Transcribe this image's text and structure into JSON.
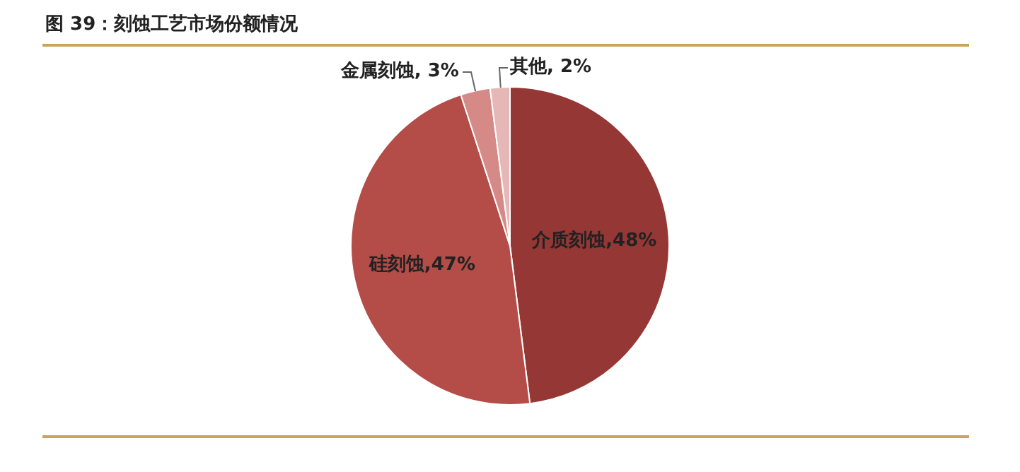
{
  "chart_data": {
    "type": "pie",
    "title": "图 39：刻蚀工艺市场份额情况",
    "categories": [
      "介质刻蚀",
      "硅刻蚀",
      "金属刻蚀",
      "其他"
    ],
    "values": [
      48,
      47,
      3,
      2
    ],
    "colors": [
      "#953735",
      "#b44d48",
      "#d58a87",
      "#e5b7b6"
    ],
    "value_labels": [
      "48%",
      "47%",
      "3%",
      "2%"
    ],
    "legend": false
  }
}
